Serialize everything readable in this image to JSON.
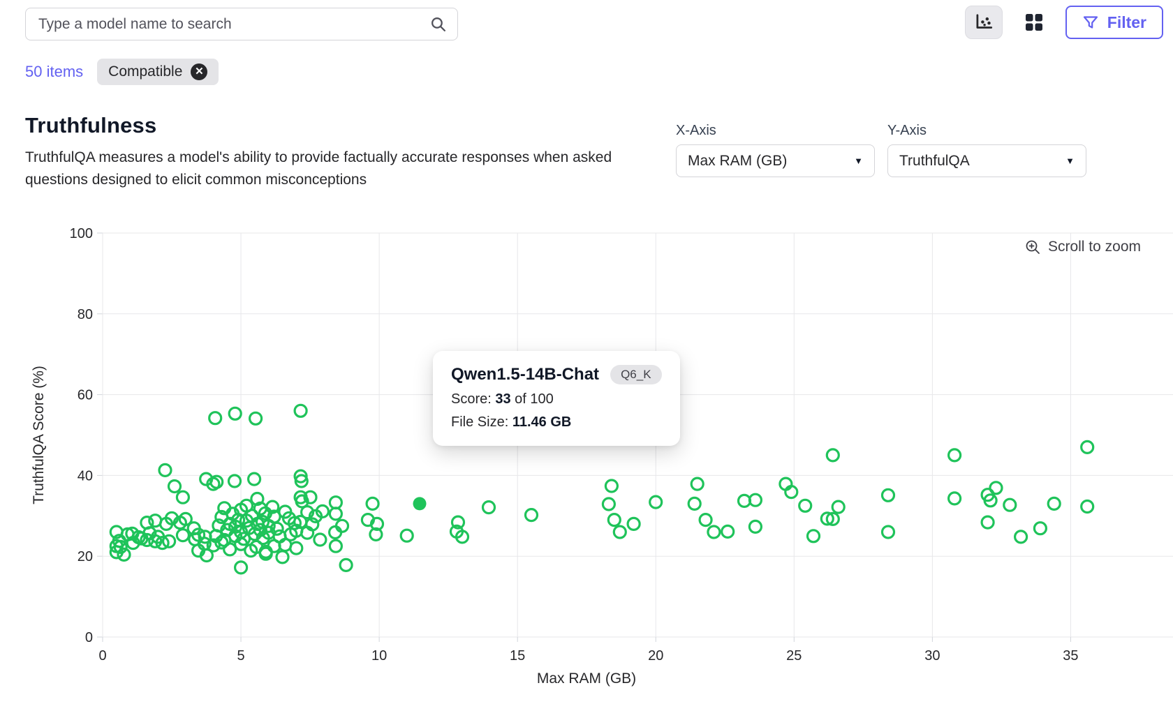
{
  "colors": {
    "accent": "#6361f1",
    "point": "#1fc35a",
    "grid": "#e7e7ea",
    "tick_text": "#27272a",
    "chip_bg": "#e4e4e7"
  },
  "header": {
    "search": {
      "placeholder": "Type a model name to search"
    },
    "filter_button": {
      "label": "Filter"
    }
  },
  "filters": {
    "items_count": "50 items",
    "chips": [
      {
        "label": "Compatible"
      }
    ]
  },
  "section": {
    "title": "Truthfulness",
    "description": "TruthfulQA measures a model's ability to provide factually accurate responses when asked questions designed to elicit common misconceptions"
  },
  "axis_controls": {
    "x": {
      "label": "X-Axis",
      "value": "Max RAM (GB)"
    },
    "y": {
      "label": "Y-Axis",
      "value": "TruthfulQA"
    }
  },
  "chart_hint": "Scroll to zoom",
  "tooltip": {
    "title": "Qwen1.5-14B-Chat",
    "badge": "Q6_K",
    "score_label": "Score: ",
    "score_value": "33",
    "score_suffix": " of 100",
    "filesize_label": "File Size: ",
    "filesize_value": "11.46 GB"
  },
  "chart_data": {
    "type": "scatter",
    "title": "Truthfulness",
    "xlabel": "Max RAM (GB)",
    "ylabel": "TruthfulQA Score (%)",
    "xlim": [
      0,
      38.7
    ],
    "ylim": [
      0,
      100
    ],
    "xticks": [
      0,
      5,
      10,
      15,
      20,
      25,
      30,
      35
    ],
    "yticks": [
      0,
      20,
      40,
      60,
      80,
      100
    ],
    "grid": true,
    "legend": false,
    "highlighted_point": {
      "x": 11.46,
      "y": 33,
      "model": "Qwen1.5-14B-Chat",
      "quant": "Q6_K",
      "score": 33,
      "file_size_gb": 11.46
    },
    "points": [
      [
        0.5,
        22.5
      ],
      [
        0.5,
        21.0
      ],
      [
        0.5,
        26.0
      ],
      [
        0.6,
        23.8
      ],
      [
        0.65,
        22.3
      ],
      [
        0.77,
        20.4
      ],
      [
        0.9,
        25.4
      ],
      [
        1.07,
        25.6
      ],
      [
        1.1,
        23.3
      ],
      [
        1.3,
        24.7
      ],
      [
        1.4,
        24.4
      ],
      [
        1.6,
        24.0
      ],
      [
        1.6,
        28.3
      ],
      [
        1.7,
        25.7
      ],
      [
        1.9,
        28.8
      ],
      [
        1.9,
        23.7
      ],
      [
        2.0,
        24.8
      ],
      [
        2.16,
        23.3
      ],
      [
        2.26,
        41.3
      ],
      [
        2.3,
        28.0
      ],
      [
        2.4,
        23.7
      ],
      [
        2.5,
        29.4
      ],
      [
        2.6,
        37.3
      ],
      [
        2.8,
        28.3
      ],
      [
        2.9,
        34.6
      ],
      [
        2.9,
        25.2
      ],
      [
        3.0,
        29.2
      ],
      [
        3.3,
        26.9
      ],
      [
        3.34,
        24.2
      ],
      [
        3.46,
        25.3
      ],
      [
        3.46,
        21.4
      ],
      [
        3.68,
        23.1
      ],
      [
        3.7,
        24.8
      ],
      [
        3.76,
        20.2
      ],
      [
        3.74,
        39.1
      ],
      [
        4.0,
        37.9
      ],
      [
        4.01,
        22.7
      ],
      [
        4.07,
        54.2
      ],
      [
        4.12,
        38.4
      ],
      [
        4.3,
        23.4
      ],
      [
        4.3,
        29.7
      ],
      [
        4.2,
        27.6
      ],
      [
        4.1,
        25.0
      ],
      [
        4.4,
        24.0
      ],
      [
        4.4,
        31.9
      ],
      [
        4.5,
        26.5
      ],
      [
        4.6,
        21.7
      ],
      [
        4.6,
        28.0
      ],
      [
        4.7,
        30.5
      ],
      [
        4.77,
        38.6
      ],
      [
        4.79,
        55.3
      ],
      [
        4.8,
        25.0
      ],
      [
        4.8,
        27.3
      ],
      [
        4.9,
        29.0
      ],
      [
        5.0,
        23.0
      ],
      [
        5.0,
        17.2
      ],
      [
        5.0,
        31.5
      ],
      [
        5.0,
        26.0
      ],
      [
        5.1,
        24.3
      ],
      [
        5.2,
        28.8
      ],
      [
        5.2,
        32.5
      ],
      [
        5.3,
        27.0
      ],
      [
        5.36,
        21.4
      ],
      [
        5.4,
        30.0
      ],
      [
        5.48,
        39.1
      ],
      [
        5.5,
        25.5
      ],
      [
        5.53,
        54.1
      ],
      [
        5.56,
        22.3
      ],
      [
        5.6,
        28.0
      ],
      [
        5.59,
        34.2
      ],
      [
        5.7,
        26.5
      ],
      [
        5.7,
        31.8
      ],
      [
        5.8,
        24.5
      ],
      [
        5.78,
        28.5
      ],
      [
        5.88,
        30.6
      ],
      [
        5.9,
        20.6
      ],
      [
        5.9,
        21.1
      ],
      [
        6.0,
        27.5
      ],
      [
        6.0,
        25.8
      ],
      [
        6.14,
        32.2
      ],
      [
        6.2,
        22.5
      ],
      [
        6.2,
        29.8
      ],
      [
        6.3,
        26.8
      ],
      [
        6.4,
        24.9
      ],
      [
        6.5,
        19.8
      ],
      [
        6.6,
        31.0
      ],
      [
        6.6,
        22.8
      ],
      [
        6.74,
        29.4
      ],
      [
        6.8,
        25.4
      ],
      [
        6.94,
        28.2
      ],
      [
        7.0,
        26.3
      ],
      [
        7.0,
        22.0
      ],
      [
        7.15,
        28.5
      ],
      [
        7.16,
        39.8
      ],
      [
        7.16,
        56.0
      ],
      [
        7.19,
        38.6
      ],
      [
        7.21,
        33.6
      ],
      [
        7.16,
        34.6
      ],
      [
        7.4,
        25.8
      ],
      [
        7.4,
        30.9
      ],
      [
        7.51,
        34.6
      ],
      [
        7.58,
        27.9
      ],
      [
        7.7,
        29.9
      ],
      [
        7.86,
        24.1
      ],
      [
        7.95,
        31.1
      ],
      [
        8.43,
        33.3
      ],
      [
        8.43,
        30.5
      ],
      [
        8.41,
        25.9
      ],
      [
        8.66,
        27.5
      ],
      [
        8.43,
        22.5
      ],
      [
        8.8,
        17.8
      ],
      [
        9.59,
        29.0
      ],
      [
        9.76,
        33.0
      ],
      [
        9.92,
        28.0
      ],
      [
        9.88,
        25.4
      ],
      [
        11.0,
        25.1
      ],
      [
        12.85,
        28.4
      ],
      [
        12.8,
        26.1
      ],
      [
        13.0,
        24.8
      ],
      [
        13.96,
        32.1
      ],
      [
        15.5,
        30.2
      ],
      [
        18.4,
        37.4
      ],
      [
        18.3,
        32.9
      ],
      [
        18.5,
        29.0
      ],
      [
        18.7,
        26.0
      ],
      [
        19.2,
        28.0
      ],
      [
        20.0,
        33.4
      ],
      [
        21.5,
        37.9
      ],
      [
        21.4,
        33.0
      ],
      [
        21.8,
        29.0
      ],
      [
        22.1,
        26.0
      ],
      [
        22.6,
        26.1
      ],
      [
        23.2,
        33.7
      ],
      [
        23.6,
        33.9
      ],
      [
        23.6,
        27.3
      ],
      [
        24.7,
        37.9
      ],
      [
        24.9,
        35.9
      ],
      [
        25.4,
        32.5
      ],
      [
        25.7,
        25.0
      ],
      [
        26.2,
        29.3
      ],
      [
        26.4,
        29.2
      ],
      [
        26.6,
        32.2
      ],
      [
        26.4,
        45.0
      ],
      [
        28.4,
        35.1
      ],
      [
        28.4,
        26.0
      ],
      [
        30.8,
        45.0
      ],
      [
        30.8,
        34.3
      ],
      [
        32.0,
        35.2
      ],
      [
        32.1,
        33.8
      ],
      [
        32.3,
        36.9
      ],
      [
        32.8,
        32.7
      ],
      [
        32.0,
        28.4
      ],
      [
        33.2,
        24.8
      ],
      [
        33.9,
        26.9
      ],
      [
        34.4,
        33.0
      ],
      [
        35.6,
        47.0
      ],
      [
        35.6,
        32.3
      ]
    ]
  }
}
